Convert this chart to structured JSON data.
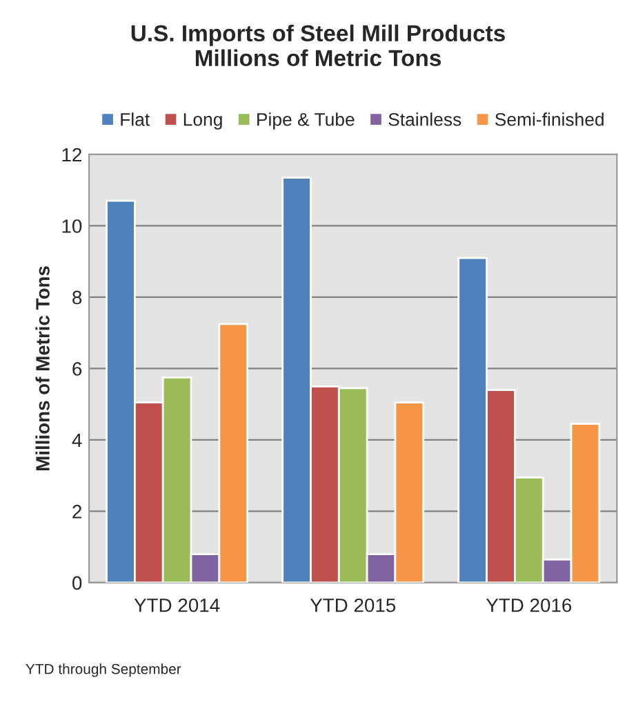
{
  "chart_data": {
    "type": "bar",
    "title": "U.S. Imports of Steel Mill Products\nMillions of Metric Tons",
    "ylabel": "Millions of Metric Tons",
    "categories": [
      "YTD 2014",
      "YTD 2015",
      "YTD 2016"
    ],
    "series": [
      {
        "name": "Flat",
        "color": "#4f81bd",
        "values": [
          10.7,
          11.35,
          9.1
        ]
      },
      {
        "name": "Long",
        "color": "#c0504d",
        "values": [
          5.05,
          5.5,
          5.4
        ]
      },
      {
        "name": "Pipe & Tube",
        "color": "#9bbb59",
        "values": [
          5.75,
          5.45,
          2.95
        ]
      },
      {
        "name": "Stainless",
        "color": "#8064a2",
        "values": [
          0.8,
          0.8,
          0.65
        ]
      },
      {
        "name": "Semi-finished",
        "color": "#f79646",
        "values": [
          7.25,
          5.05,
          4.45
        ]
      }
    ],
    "ylim": [
      0,
      12
    ],
    "yticks": [
      0,
      2,
      4,
      6,
      8,
      10,
      12
    ],
    "grid": "y",
    "legend": "top",
    "annotations": [
      "YTD through September"
    ]
  }
}
